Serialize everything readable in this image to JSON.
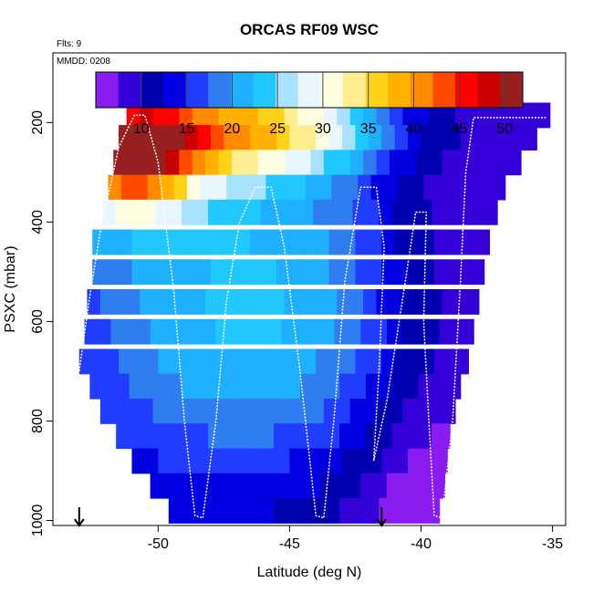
{
  "chart_data": {
    "type": "heatmap",
    "title": "ORCAS RF09 WSC",
    "flights_label": "Flts: 9",
    "date_label": "MMDD: 0208",
    "xlabel": "Latitude (deg N)",
    "ylabel": "PSXC (mbar)",
    "xlim": [
      -54,
      -34.5
    ],
    "ylim": [
      1010,
      60
    ],
    "x_ticks": [
      -50,
      -45,
      -40,
      -35
    ],
    "y_ticks": [
      200,
      400,
      600,
      800,
      1000
    ],
    "colorbar": {
      "min": 5,
      "max": 52,
      "ticks": [
        10,
        15,
        20,
        25,
        30,
        35,
        40,
        45,
        50
      ],
      "colors": [
        "#8a1cf0",
        "#3400d8",
        "#0000b0",
        "#0000e0",
        "#1f3cff",
        "#2f7df0",
        "#1eb0ff",
        "#20c8ff",
        "#a8e2ff",
        "#e8f6ff",
        "#fffde0",
        "#ffee90",
        "#ffd21a",
        "#ffb000",
        "#ff8a00",
        "#ff4a00",
        "#ff0000",
        "#c80000",
        "#962020"
      ]
    },
    "bands": [
      {
        "p": 185,
        "lat0": -51.2,
        "lat1": -35.1
      },
      {
        "p": 230,
        "lat0": -51.5,
        "lat1": -35.6
      },
      {
        "p": 280,
        "lat0": -51.7,
        "lat1": -36.2
      },
      {
        "p": 330,
        "lat0": -51.9,
        "lat1": -36.8
      },
      {
        "p": 380,
        "lat0": -52.1,
        "lat1": -37.1
      },
      {
        "p": 440,
        "lat0": -52.5,
        "lat1": -37.4
      },
      {
        "p": 500,
        "lat0": -52.5,
        "lat1": -37.6
      },
      {
        "p": 560,
        "lat0": -52.7,
        "lat1": -37.8
      },
      {
        "p": 620,
        "lat0": -52.8,
        "lat1": -38.0
      },
      {
        "p": 680,
        "lat0": -53.0,
        "lat1": -38.2
      },
      {
        "p": 730,
        "lat0": -52.6,
        "lat1": -38.5
      },
      {
        "p": 780,
        "lat0": -52.2,
        "lat1": -38.7
      },
      {
        "p": 830,
        "lat0": -51.6,
        "lat1": -38.9
      },
      {
        "p": 880,
        "lat0": -51.0,
        "lat1": -39.0
      },
      {
        "p": 930,
        "lat0": -50.3,
        "lat1": -39.1
      },
      {
        "p": 980,
        "lat0": -49.6,
        "lat1": -39.3
      }
    ],
    "flight_track": [
      [
        -53.0,
        700
      ],
      [
        -52.6,
        550
      ],
      [
        -52.2,
        420
      ],
      [
        -51.5,
        250
      ],
      [
        -50.9,
        185
      ],
      [
        -50.5,
        185
      ],
      [
        -50.0,
        280
      ],
      [
        -49.4,
        540
      ],
      [
        -49.0,
        800
      ],
      [
        -48.6,
        990
      ],
      [
        -48.3,
        995
      ],
      [
        -47.8,
        800
      ],
      [
        -47.4,
        560
      ],
      [
        -46.9,
        400
      ],
      [
        -46.3,
        330
      ],
      [
        -45.7,
        330
      ],
      [
        -45.2,
        450
      ],
      [
        -44.6,
        700
      ],
      [
        -44.0,
        990
      ],
      [
        -43.7,
        995
      ],
      [
        -43.3,
        790
      ],
      [
        -42.9,
        520
      ],
      [
        -42.3,
        330
      ],
      [
        -41.7,
        330
      ],
      [
        -41.4,
        450
      ],
      [
        -41.6,
        700
      ],
      [
        -41.8,
        880
      ],
      [
        -41.3,
        760
      ],
      [
        -40.6,
        520
      ],
      [
        -40.2,
        380
      ],
      [
        -39.8,
        380
      ],
      [
        -39.9,
        600
      ],
      [
        -39.7,
        800
      ],
      [
        -39.5,
        990
      ],
      [
        -39.2,
        995
      ],
      [
        -38.8,
        800
      ],
      [
        -38.5,
        520
      ],
      [
        -38.3,
        300
      ],
      [
        -38.0,
        190
      ],
      [
        -35.2,
        190
      ]
    ],
    "arrows_lat": [
      -53.0,
      -41.5
    ]
  }
}
